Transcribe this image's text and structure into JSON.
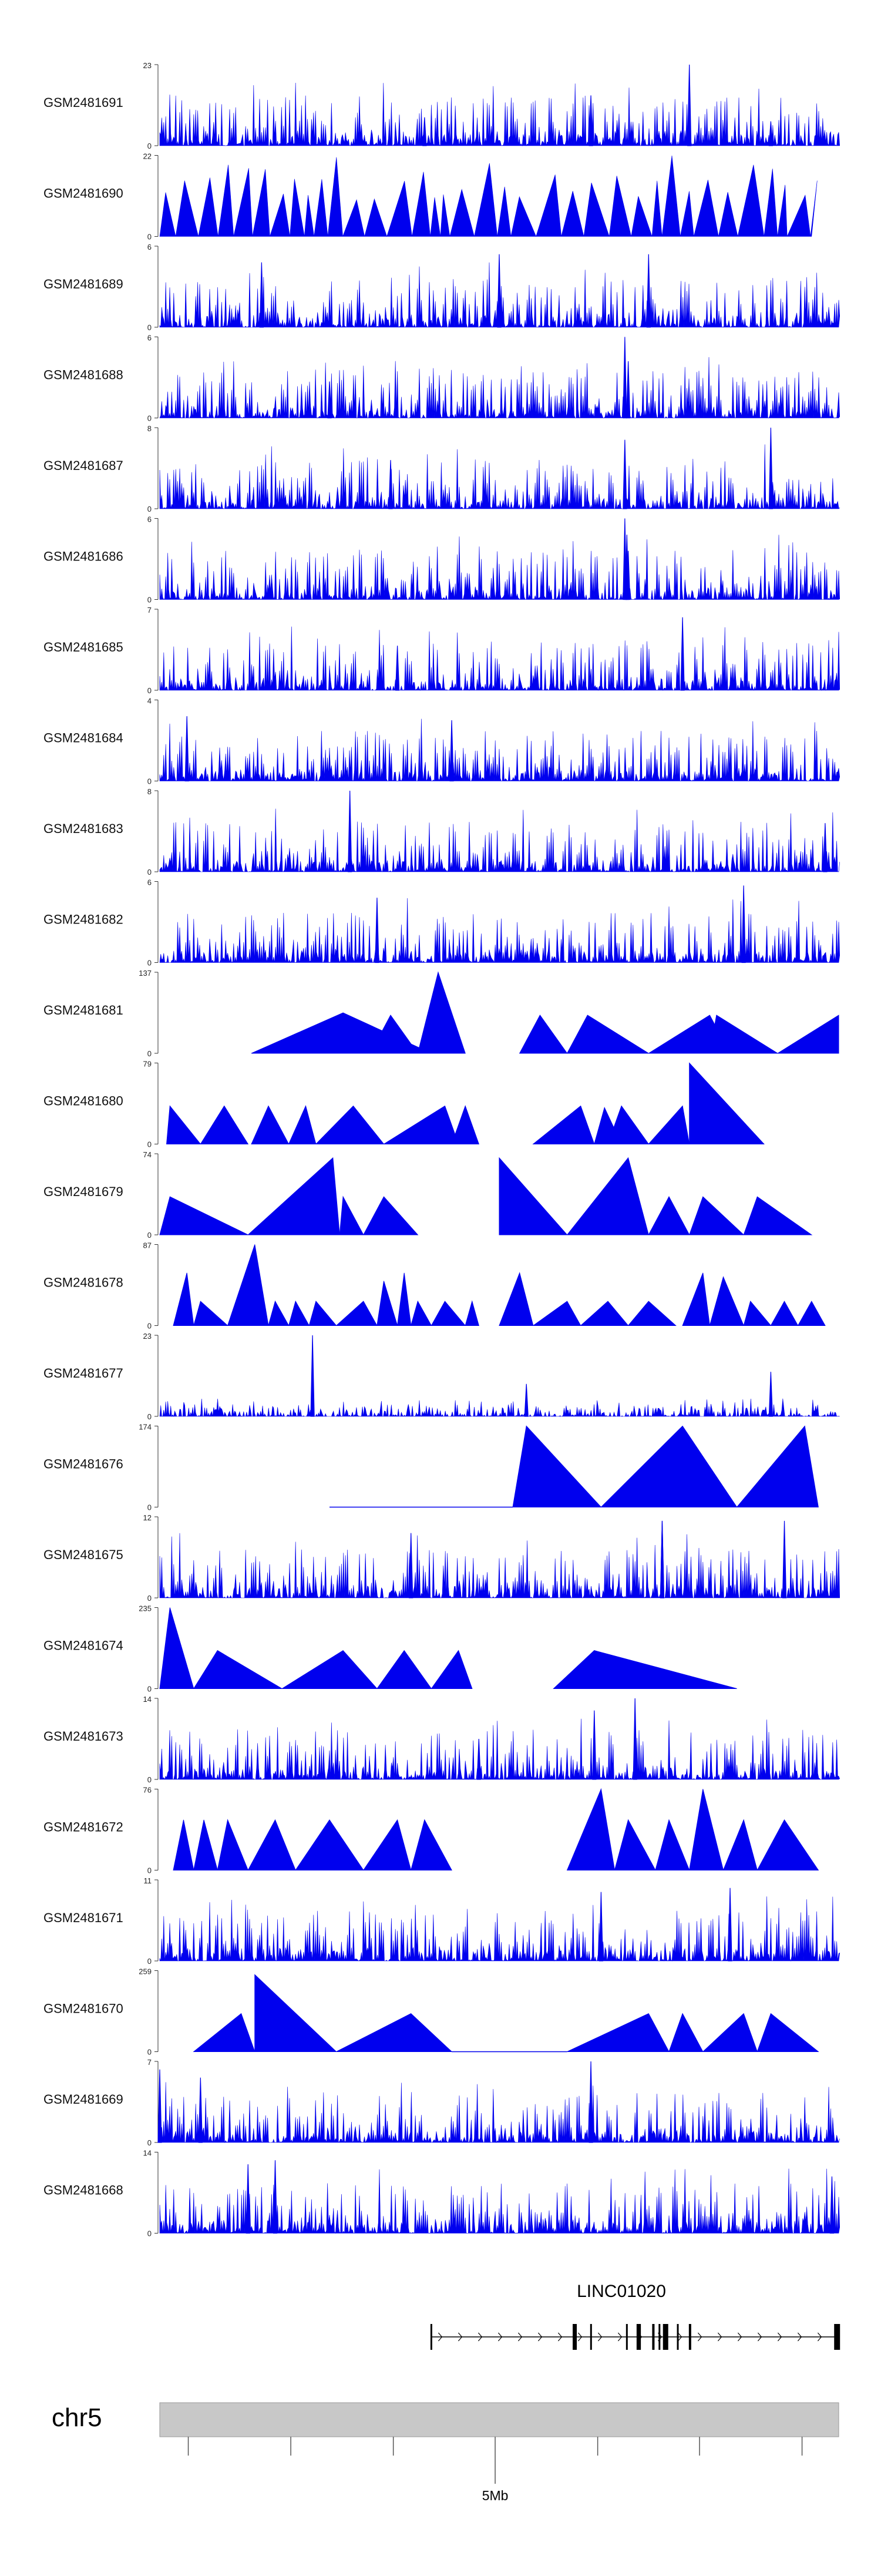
{
  "chart_data": {
    "type": "area",
    "title": "",
    "tracks": [
      {
        "name": "GSM2481691",
        "max": "23",
        "min": "0",
        "style": "dense",
        "seed": 1,
        "peaks": [
          [
            0.635,
            0.62
          ],
          [
            0.78,
            1.0
          ],
          [
            0.39,
            0.35
          ],
          [
            0.9,
            0.3
          ]
        ]
      },
      {
        "name": "GSM2481690",
        "max": "22",
        "min": "0",
        "style": "sparse",
        "seed": 2,
        "peaks": [],
        "range": [
          0.0,
          0.96
        ]
      },
      {
        "name": "GSM2481689",
        "max": "6",
        "min": "0",
        "style": "dense",
        "seed": 3,
        "peaks": [
          [
            0.15,
            0.8
          ],
          [
            0.5,
            0.9
          ],
          [
            0.72,
            0.9
          ]
        ]
      },
      {
        "name": "GSM2481688",
        "max": "6",
        "min": "0",
        "style": "dense",
        "seed": 4,
        "peaks": [
          [
            0.685,
            1.0
          ],
          [
            0.69,
            0.7
          ],
          [
            0.25,
            0.45
          ]
        ]
      },
      {
        "name": "GSM2481687",
        "max": "8",
        "min": "0",
        "style": "dense",
        "seed": 5,
        "peaks": [
          [
            0.685,
            0.85
          ],
          [
            0.9,
            1.0
          ],
          [
            0.34,
            0.6
          ]
        ]
      },
      {
        "name": "GSM2481686",
        "max": "6",
        "min": "0",
        "style": "dense",
        "seed": 6,
        "peaks": [
          [
            0.685,
            1.0
          ],
          [
            0.688,
            0.8
          ],
          [
            0.69,
            0.6
          ]
        ]
      },
      {
        "name": "GSM2481685",
        "max": "7",
        "min": "0",
        "style": "dense",
        "seed": 7,
        "peaks": [
          [
            0.77,
            0.9
          ],
          [
            0.35,
            0.55
          ]
        ]
      },
      {
        "name": "GSM2481684",
        "max": "4",
        "min": "0",
        "style": "dense",
        "seed": 8,
        "peaks": [
          [
            0.04,
            0.8
          ],
          [
            0.43,
            0.75
          ]
        ]
      },
      {
        "name": "GSM2481683",
        "max": "8",
        "min": "0",
        "style": "dense",
        "seed": 9,
        "peaks": [
          [
            0.28,
            1.0
          ],
          [
            0.98,
            0.6
          ]
        ]
      },
      {
        "name": "GSM2481682",
        "max": "6",
        "min": "0",
        "style": "dense",
        "seed": 10,
        "peaks": [
          [
            0.32,
            0.8
          ],
          [
            0.86,
            0.95
          ]
        ]
      },
      {
        "name": "GSM2481681",
        "max": "137",
        "min": "0",
        "style": "tri",
        "seed": 11,
        "tris": [
          [
            0.135,
            0.27,
            0.4,
            0.5
          ],
          [
            0.31,
            0.34,
            0.38,
            0.47
          ],
          [
            0.38,
            0.41,
            0.45,
            1.0
          ],
          [
            0.53,
            0.56,
            0.6,
            0.47
          ],
          [
            0.6,
            0.63,
            0.72,
            0.47
          ],
          [
            0.72,
            0.81,
            0.84,
            0.47
          ],
          [
            0.81,
            0.82,
            0.91,
            0.47
          ],
          [
            0.91,
            1.0,
            1.0,
            0.47
          ]
        ]
      },
      {
        "name": "GSM2481680",
        "max": "79",
        "min": "0",
        "style": "tri",
        "seed": 12,
        "tris": [
          [
            0.01,
            0.015,
            0.06,
            0.47
          ],
          [
            0.06,
            0.095,
            0.13,
            0.47
          ],
          [
            0.135,
            0.16,
            0.19,
            0.47
          ],
          [
            0.19,
            0.215,
            0.23,
            0.47
          ],
          [
            0.23,
            0.285,
            0.33,
            0.47
          ],
          [
            0.33,
            0.42,
            0.44,
            0.47
          ],
          [
            0.43,
            0.45,
            0.47,
            0.47
          ],
          [
            0.55,
            0.62,
            0.64,
            0.47
          ],
          [
            0.64,
            0.655,
            0.68,
            0.45
          ],
          [
            0.66,
            0.68,
            0.72,
            0.47
          ],
          [
            0.72,
            0.77,
            0.78,
            0.47
          ],
          [
            0.78,
            0.78,
            0.89,
            1.0
          ]
        ]
      },
      {
        "name": "GSM2481679",
        "max": "74",
        "min": "0",
        "style": "tri",
        "seed": 13,
        "tris": [
          [
            0.0,
            0.015,
            0.13,
            0.47
          ],
          [
            0.13,
            0.255,
            0.265,
            0.95
          ],
          [
            0.265,
            0.27,
            0.3,
            0.47
          ],
          [
            0.3,
            0.33,
            0.38,
            0.47
          ],
          [
            0.5,
            0.5,
            0.6,
            0.95
          ],
          [
            0.6,
            0.69,
            0.72,
            0.95
          ],
          [
            0.72,
            0.75,
            0.78,
            0.47
          ],
          [
            0.78,
            0.8,
            0.86,
            0.47
          ],
          [
            0.86,
            0.88,
            0.96,
            0.47
          ]
        ]
      },
      {
        "name": "GSM2481678",
        "max": "87",
        "min": "0",
        "style": "tri",
        "seed": 14,
        "tris": [
          [
            0.02,
            0.04,
            0.05,
            0.65
          ],
          [
            0.05,
            0.06,
            0.1,
            0.3
          ],
          [
            0.1,
            0.14,
            0.16,
            1.0
          ],
          [
            0.16,
            0.17,
            0.19,
            0.3
          ],
          [
            0.19,
            0.2,
            0.22,
            0.3
          ],
          [
            0.22,
            0.23,
            0.26,
            0.3
          ],
          [
            0.26,
            0.3,
            0.32,
            0.3
          ],
          [
            0.32,
            0.33,
            0.35,
            0.55
          ],
          [
            0.35,
            0.36,
            0.37,
            0.65
          ],
          [
            0.37,
            0.38,
            0.4,
            0.3
          ],
          [
            0.4,
            0.42,
            0.45,
            0.3
          ],
          [
            0.45,
            0.46,
            0.47,
            0.3
          ],
          [
            0.5,
            0.53,
            0.55,
            0.65
          ],
          [
            0.55,
            0.6,
            0.62,
            0.3
          ],
          [
            0.62,
            0.66,
            0.69,
            0.3
          ],
          [
            0.69,
            0.72,
            0.76,
            0.3
          ],
          [
            0.77,
            0.8,
            0.81,
            0.65
          ],
          [
            0.81,
            0.83,
            0.86,
            0.6
          ],
          [
            0.86,
            0.87,
            0.9,
            0.3
          ],
          [
            0.9,
            0.92,
            0.94,
            0.3
          ],
          [
            0.94,
            0.96,
            0.98,
            0.3
          ]
        ]
      },
      {
        "name": "GSM2481677",
        "max": "23",
        "min": "0",
        "style": "dense",
        "seed": 15,
        "low": true,
        "peaks": [
          [
            0.225,
            1.0
          ],
          [
            0.54,
            0.4
          ],
          [
            0.9,
            0.55
          ]
        ]
      },
      {
        "name": "GSM2481676",
        "max": "174",
        "min": "0",
        "style": "tri",
        "seed": 16,
        "tris": [
          [
            0.52,
            0.54,
            0.65,
            1.0
          ],
          [
            0.65,
            0.77,
            0.85,
            1.0
          ],
          [
            0.85,
            0.95,
            0.97,
            1.0
          ]
        ],
        "line": [
          0.25,
          0.52
        ]
      },
      {
        "name": "GSM2481675",
        "max": "12",
        "min": "0",
        "style": "dense",
        "seed": 17,
        "peaks": [
          [
            0.74,
            0.95
          ],
          [
            0.92,
            0.95
          ],
          [
            0.37,
            0.8
          ],
          [
            0.74,
            0.95
          ]
        ]
      },
      {
        "name": "GSM2481674",
        "max": "235",
        "min": "0",
        "style": "tri",
        "seed": 18,
        "tris": [
          [
            0.0,
            0.015,
            0.05,
            1.0
          ],
          [
            0.05,
            0.085,
            0.18,
            0.47
          ],
          [
            0.18,
            0.27,
            0.32,
            0.47
          ],
          [
            0.32,
            0.36,
            0.4,
            0.47
          ],
          [
            0.4,
            0.44,
            0.46,
            0.47
          ],
          [
            0.58,
            0.64,
            0.85,
            0.47
          ]
        ]
      },
      {
        "name": "GSM2481673",
        "max": "14",
        "min": "0",
        "style": "dense",
        "seed": 19,
        "peaks": [
          [
            0.64,
            0.85
          ],
          [
            0.7,
            1.0
          ],
          [
            0.47,
            0.5
          ]
        ]
      },
      {
        "name": "GSM2481672",
        "max": "76",
        "min": "0",
        "style": "tri",
        "seed": 20,
        "tris": [
          [
            0.02,
            0.035,
            0.05,
            0.62
          ],
          [
            0.05,
            0.065,
            0.085,
            0.62
          ],
          [
            0.085,
            0.1,
            0.13,
            0.62
          ],
          [
            0.13,
            0.17,
            0.2,
            0.62
          ],
          [
            0.2,
            0.25,
            0.3,
            0.62
          ],
          [
            0.3,
            0.35,
            0.37,
            0.62
          ],
          [
            0.37,
            0.39,
            0.43,
            0.62
          ],
          [
            0.6,
            0.65,
            0.67,
            1.0
          ],
          [
            0.67,
            0.69,
            0.73,
            0.62
          ],
          [
            0.73,
            0.75,
            0.78,
            0.62
          ],
          [
            0.78,
            0.8,
            0.83,
            1.0
          ],
          [
            0.83,
            0.86,
            0.88,
            0.62
          ],
          [
            0.88,
            0.92,
            0.97,
            0.62
          ]
        ]
      },
      {
        "name": "GSM2481671",
        "max": "11",
        "min": "0",
        "style": "dense",
        "seed": 21,
        "peaks": [
          [
            0.65,
            0.85
          ],
          [
            0.84,
            0.9
          ]
        ]
      },
      {
        "name": "GSM2481670",
        "max": "259",
        "min": "0",
        "style": "tri",
        "seed": 22,
        "tris": [
          [
            0.05,
            0.12,
            0.14,
            0.47
          ],
          [
            0.14,
            0.14,
            0.26,
            0.95
          ],
          [
            0.26,
            0.37,
            0.43,
            0.47
          ],
          [
            0.6,
            0.72,
            0.75,
            0.47
          ],
          [
            0.75,
            0.77,
            0.8,
            0.47
          ],
          [
            0.8,
            0.86,
            0.88,
            0.47
          ],
          [
            0.88,
            0.9,
            0.97,
            0.47
          ]
        ],
        "line": [
          0.43,
          0.6
        ]
      },
      {
        "name": "GSM2481669",
        "max": "7",
        "min": "0",
        "style": "dense",
        "seed": 23,
        "peaks": [
          [
            0.635,
            1.0
          ],
          [
            0.0,
            0.9
          ],
          [
            0.06,
            0.8
          ]
        ]
      },
      {
        "name": "GSM2481668",
        "max": "14",
        "min": "0",
        "style": "dense",
        "seed": 24,
        "peaks": [
          [
            0.17,
            0.9
          ],
          [
            0.13,
            0.85
          ],
          [
            0.99,
            0.7
          ]
        ]
      }
    ],
    "gene": {
      "label": "LINC01020",
      "start": 0.4,
      "end": 1.0
    },
    "chromosome": {
      "label": "chr5",
      "tick_label": "5Mb"
    },
    "colors": {
      "signal": "#0000EE",
      "axis": "#333333",
      "chrom_bar": "#c8c8c8",
      "gene": "#000000"
    }
  }
}
